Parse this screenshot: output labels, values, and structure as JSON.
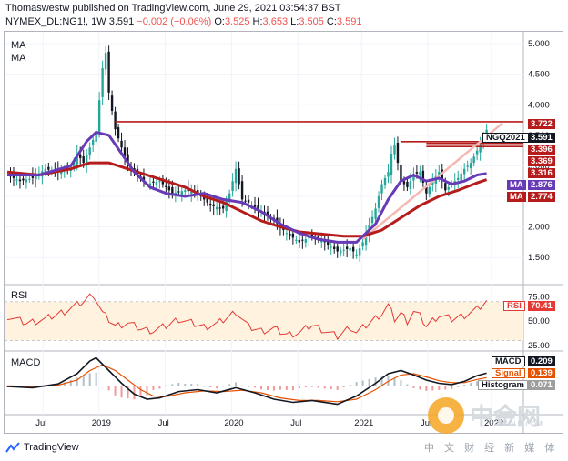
{
  "header": {
    "line1": "Thomaswestw published on TradingView.com, June 29, 2021 03:54:37 BST",
    "symbol": "NYMEX_DL:NG1!, 1W",
    "last": "3.591",
    "change": "−0.002 (−0.06%)",
    "o_label": "O:",
    "o": "3.525",
    "h_label": "H:",
    "h": "3.653",
    "l_label": "L:",
    "l": "3.505",
    "c_label": "C:",
    "c": "3.591"
  },
  "panes": {
    "price_label_1": "MA",
    "price_label_2": "MA",
    "rsi_label": "RSI",
    "macd_label": "MACD"
  },
  "tags": {
    "level_3722": "3.722",
    "symbol_tag": "NGQ2021",
    "last_price": "3.591",
    "level_3396": "3.396",
    "level_3369": "3.369",
    "level_3316": "3.316",
    "ma_fast_name": "MA",
    "ma_fast_val": "2.876",
    "ma_slow_name": "MA",
    "ma_slow_val": "2.774",
    "rsi_name": "RSI",
    "rsi_val": "70.41",
    "macd_name": "MACD",
    "macd_val": "0.209",
    "signal_name": "Signal",
    "signal_val": "0.139",
    "hist_name": "Histogram",
    "hist_val": "0.071"
  },
  "footer": {
    "brand": "TradingView"
  },
  "watermark": {
    "text": "中金网",
    "sub": "中 文 财 经 新 媒 体",
    "site": "CNGOLD.COM"
  },
  "colors": {
    "up": "#26a69a",
    "down": "#131722",
    "ma_fast": "#673ab7",
    "ma_slow": "#b71c1c",
    "resistance": "#b71c1c",
    "trend": "#f5b7b1",
    "rsi": "#e53935",
    "rsi_band": "#fff3e0",
    "macd": "#131722",
    "signal": "#e65100"
  },
  "chart_data": {
    "type": "candlestick",
    "timeframe": "1W",
    "x_ticks": [
      "Jul",
      "2019",
      "Jul",
      "2020",
      "Jul",
      "2021",
      "Jul",
      "2022"
    ],
    "price_axis": {
      "ticks": [
        1.5,
        2.0,
        2.5,
        3.0,
        3.5,
        4.0,
        4.5,
        5.0
      ],
      "range": [
        1.25,
        5.15
      ]
    },
    "rsi_axis": {
      "ticks": [
        25,
        50,
        75
      ],
      "range": [
        22,
        82
      ],
      "band": [
        30,
        70
      ]
    },
    "price_path": [
      [
        0,
        2.85
      ],
      [
        4,
        2.75
      ],
      [
        8,
        2.8
      ],
      [
        12,
        2.95
      ],
      [
        16,
        2.9
      ],
      [
        20,
        2.95
      ],
      [
        22,
        3.2
      ],
      [
        24,
        3.05
      ],
      [
        26,
        3.3
      ],
      [
        28,
        3.55
      ],
      [
        30,
        4.6
      ],
      [
        31,
        4.85
      ],
      [
        32,
        4.2
      ],
      [
        34,
        3.6
      ],
      [
        36,
        3.3
      ],
      [
        38,
        3.0
      ],
      [
        40,
        2.9
      ],
      [
        44,
        2.7
      ],
      [
        48,
        2.75
      ],
      [
        52,
        2.55
      ],
      [
        56,
        2.6
      ],
      [
        60,
        2.55
      ],
      [
        64,
        2.35
      ],
      [
        68,
        2.3
      ],
      [
        70,
        2.55
      ],
      [
        72,
        2.95
      ],
      [
        74,
        2.45
      ],
      [
        76,
        2.4
      ],
      [
        80,
        2.25
      ],
      [
        84,
        2.1
      ],
      [
        88,
        1.9
      ],
      [
        92,
        1.75
      ],
      [
        96,
        1.85
      ],
      [
        100,
        1.75
      ],
      [
        104,
        1.6
      ],
      [
        108,
        1.65
      ],
      [
        110,
        1.55
      ],
      [
        112,
        1.75
      ],
      [
        116,
        2.3
      ],
      [
        118,
        2.7
      ],
      [
        120,
        2.9
      ],
      [
        121,
        3.2
      ],
      [
        122,
        3.35
      ],
      [
        123,
        3.05
      ],
      [
        124,
        2.75
      ],
      [
        126,
        2.65
      ],
      [
        128,
        2.85
      ],
      [
        130,
        2.9
      ],
      [
        132,
        2.55
      ],
      [
        134,
        2.75
      ],
      [
        136,
        2.9
      ],
      [
        138,
        2.6
      ],
      [
        140,
        2.7
      ],
      [
        142,
        2.8
      ],
      [
        144,
        2.95
      ],
      [
        146,
        3.05
      ],
      [
        148,
        3.25
      ],
      [
        150,
        3.45
      ],
      [
        151,
        3.591
      ]
    ],
    "ma_fast": [
      [
        0,
        2.85
      ],
      [
        10,
        2.85
      ],
      [
        20,
        3.0
      ],
      [
        25,
        3.4
      ],
      [
        28,
        3.55
      ],
      [
        32,
        3.5
      ],
      [
        36,
        3.2
      ],
      [
        40,
        2.9
      ],
      [
        45,
        2.65
      ],
      [
        50,
        2.55
      ],
      [
        56,
        2.5
      ],
      [
        62,
        2.55
      ],
      [
        68,
        2.45
      ],
      [
        74,
        2.4
      ],
      [
        80,
        2.25
      ],
      [
        86,
        2.05
      ],
      [
        92,
        1.9
      ],
      [
        98,
        1.8
      ],
      [
        104,
        1.75
      ],
      [
        110,
        1.75
      ],
      [
        116,
        2.05
      ],
      [
        120,
        2.45
      ],
      [
        124,
        2.75
      ],
      [
        128,
        2.85
      ],
      [
        132,
        2.75
      ],
      [
        136,
        2.8
      ],
      [
        140,
        2.7
      ],
      [
        144,
        2.75
      ],
      [
        148,
        2.85
      ],
      [
        151,
        2.876
      ]
    ],
    "ma_slow": [
      [
        0,
        2.9
      ],
      [
        10,
        2.85
      ],
      [
        20,
        2.95
      ],
      [
        26,
        3.05
      ],
      [
        32,
        3.05
      ],
      [
        38,
        2.95
      ],
      [
        44,
        2.85
      ],
      [
        50,
        2.75
      ],
      [
        56,
        2.65
      ],
      [
        62,
        2.5
      ],
      [
        68,
        2.4
      ],
      [
        74,
        2.25
      ],
      [
        80,
        2.1
      ],
      [
        86,
        2.0
      ],
      [
        92,
        1.92
      ],
      [
        100,
        1.88
      ],
      [
        106,
        1.85
      ],
      [
        112,
        1.85
      ],
      [
        118,
        1.95
      ],
      [
        124,
        2.15
      ],
      [
        130,
        2.35
      ],
      [
        136,
        2.5
      ],
      [
        142,
        2.6
      ],
      [
        148,
        2.72
      ],
      [
        151,
        2.774
      ]
    ],
    "resistance_lines": [
      {
        "value": 3.722,
        "x_from": 34,
        "x_to": 151
      },
      {
        "value": 3.396,
        "x_from": 124,
        "x_to": 151
      },
      {
        "value": 3.369,
        "x_from": 132,
        "x_to": 151
      },
      {
        "value": 3.316,
        "x_from": 132,
        "x_to": 151
      }
    ],
    "trend_line": {
      "from": [
        112,
        1.8
      ],
      "to": [
        156,
        3.7
      ]
    },
    "rsi": [
      [
        0,
        55
      ],
      [
        6,
        48
      ],
      [
        12,
        52
      ],
      [
        18,
        60
      ],
      [
        24,
        70
      ],
      [
        27,
        78
      ],
      [
        28,
        72
      ],
      [
        30,
        58
      ],
      [
        34,
        45
      ],
      [
        38,
        48
      ],
      [
        42,
        42
      ],
      [
        46,
        40
      ],
      [
        50,
        45
      ],
      [
        54,
        52
      ],
      [
        58,
        48
      ],
      [
        62,
        44
      ],
      [
        66,
        47
      ],
      [
        70,
        55
      ],
      [
        72,
        60
      ],
      [
        76,
        44
      ],
      [
        80,
        40
      ],
      [
        84,
        42
      ],
      [
        88,
        36
      ],
      [
        92,
        38
      ],
      [
        96,
        46
      ],
      [
        100,
        40
      ],
      [
        104,
        34
      ],
      [
        108,
        44
      ],
      [
        110,
        38
      ],
      [
        114,
        48
      ],
      [
        118,
        58
      ],
      [
        120,
        66
      ],
      [
        122,
        52
      ],
      [
        124,
        58
      ],
      [
        126,
        50
      ],
      [
        128,
        60
      ],
      [
        130,
        55
      ],
      [
        132,
        45
      ],
      [
        136,
        56
      ],
      [
        140,
        52
      ],
      [
        144,
        56
      ],
      [
        148,
        62
      ],
      [
        151,
        70.41
      ]
    ],
    "macd": [
      [
        0,
        0.0
      ],
      [
        8,
        -0.02
      ],
      [
        16,
        0.04
      ],
      [
        22,
        0.2
      ],
      [
        26,
        0.4
      ],
      [
        28,
        0.45
      ],
      [
        32,
        0.25
      ],
      [
        36,
        0.05
      ],
      [
        40,
        -0.12
      ],
      [
        44,
        -0.2
      ],
      [
        48,
        -0.18
      ],
      [
        54,
        -0.08
      ],
      [
        60,
        -0.05
      ],
      [
        66,
        -0.1
      ],
      [
        72,
        -0.02
      ],
      [
        78,
        -0.1
      ],
      [
        84,
        -0.2
      ],
      [
        90,
        -0.25
      ],
      [
        96,
        -0.22
      ],
      [
        104,
        -0.28
      ],
      [
        110,
        -0.15
      ],
      [
        116,
        0.05
      ],
      [
        120,
        0.2
      ],
      [
        124,
        0.25
      ],
      [
        128,
        0.18
      ],
      [
        132,
        0.1
      ],
      [
        136,
        0.05
      ],
      [
        140,
        0.03
      ],
      [
        144,
        0.08
      ],
      [
        148,
        0.17
      ],
      [
        151,
        0.209
      ]
    ],
    "signal": [
      [
        0,
        0.01
      ],
      [
        8,
        0.0
      ],
      [
        16,
        0.02
      ],
      [
        22,
        0.1
      ],
      [
        26,
        0.25
      ],
      [
        30,
        0.34
      ],
      [
        34,
        0.25
      ],
      [
        38,
        0.1
      ],
      [
        42,
        -0.05
      ],
      [
        46,
        -0.15
      ],
      [
        50,
        -0.16
      ],
      [
        56,
        -0.1
      ],
      [
        62,
        -0.07
      ],
      [
        68,
        -0.08
      ],
      [
        74,
        -0.06
      ],
      [
        80,
        -0.1
      ],
      [
        86,
        -0.18
      ],
      [
        92,
        -0.22
      ],
      [
        98,
        -0.22
      ],
      [
        104,
        -0.24
      ],
      [
        110,
        -0.2
      ],
      [
        116,
        -0.05
      ],
      [
        120,
        0.08
      ],
      [
        124,
        0.18
      ],
      [
        128,
        0.2
      ],
      [
        132,
        0.15
      ],
      [
        136,
        0.09
      ],
      [
        140,
        0.06
      ],
      [
        144,
        0.06
      ],
      [
        148,
        0.11
      ],
      [
        151,
        0.139
      ]
    ]
  }
}
